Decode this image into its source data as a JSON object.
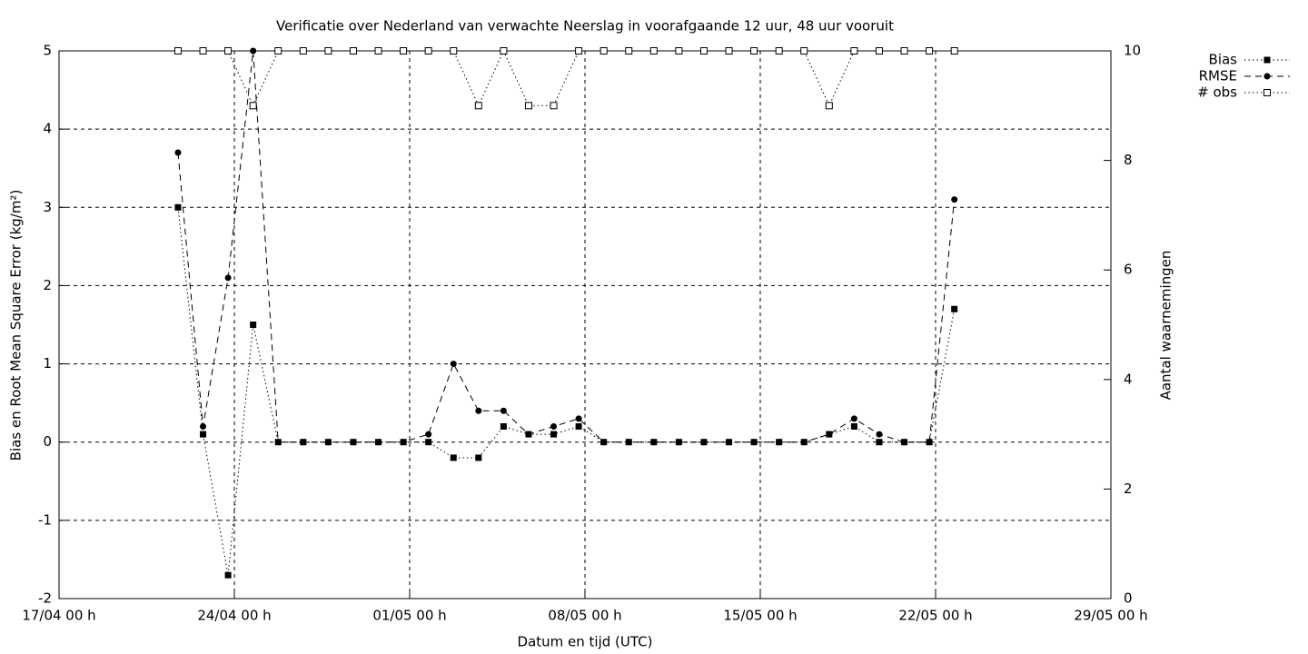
{
  "chart_data": {
    "type": "line",
    "title": "Verificatie over Nederland van verwachte Neerslag in voorafgaande 12 uur, 48 uur vooruit",
    "xlabel": "Datum en tijd (UTC)",
    "ylabel": "Bias en Root Mean Square Error (kg/m²)",
    "y2label": "Aantal waarnemingen",
    "x": [
      "21/04 18 h",
      "22/04 18 h",
      "23/04 18 h",
      "24/04 18 h",
      "25/04 18 h",
      "26/04 18 h",
      "27/04 18 h",
      "28/04 18 h",
      "29/04 18 h",
      "30/04 18 h",
      "01/05 18 h",
      "02/05 18 h",
      "03/05 18 h",
      "04/05 18 h",
      "05/05 18 h",
      "06/05 18 h",
      "07/05 18 h",
      "08/05 18 h",
      "09/05 18 h",
      "10/05 18 h",
      "11/05 18 h",
      "12/05 18 h",
      "13/05 18 h",
      "14/05 18 h",
      "15/05 18 h",
      "16/05 18 h",
      "17/05 18 h",
      "18/05 18 h",
      "19/05 18 h",
      "20/05 18 h",
      "21/05 18 h",
      "22/05 18 h"
    ],
    "series": [
      {
        "name": "Bias",
        "color": "#000000",
        "line_style": "dotted",
        "marker": "filled-square",
        "values": [
          3.0,
          0.1,
          -1.7,
          1.5,
          0,
          0,
          0,
          0,
          0,
          0,
          0,
          -0.2,
          -0.2,
          0.2,
          0.1,
          0.1,
          0.2,
          0,
          0,
          0,
          0,
          0,
          0,
          0,
          0,
          0,
          0.1,
          0.2,
          0,
          0,
          0,
          1.7
        ]
      },
      {
        "name": "RMSE",
        "color": "#000000",
        "line_style": "dashed",
        "marker": "filled-circle",
        "values": [
          3.7,
          0.2,
          2.1,
          5.0,
          0,
          0,
          0,
          0,
          0,
          0,
          0.1,
          1.0,
          0.4,
          0.4,
          0.1,
          0.2,
          0.3,
          0,
          0,
          0,
          0,
          0,
          0,
          0,
          0,
          0,
          0.1,
          0.3,
          0.1,
          0,
          0,
          3.1
        ]
      },
      {
        "name": "# obs",
        "color": "#000000",
        "line_style": "dotted",
        "marker": "open-square",
        "axis": "y2",
        "values": [
          10,
          10,
          10,
          9,
          10,
          10,
          10,
          10,
          10,
          10,
          10,
          10,
          9,
          10,
          9,
          9,
          10,
          10,
          10,
          10,
          10,
          10,
          10,
          10,
          10,
          10,
          9,
          10,
          10,
          10,
          10,
          10
        ]
      }
    ],
    "xlim": [
      "17/04 00 h",
      "29/05 00 h"
    ],
    "xticks": [
      "17/04 00 h",
      "24/04 00 h",
      "01/05 00 h",
      "08/05 00 h",
      "15/05 00 h",
      "22/05 00 h",
      "29/05 00 h"
    ],
    "ylim": [
      -2,
      5
    ],
    "yticks": [
      -2,
      -1,
      0,
      1,
      2,
      3,
      4,
      5
    ],
    "y2lim": [
      0,
      10
    ],
    "y2ticks": [
      0,
      2,
      4,
      6,
      8,
      10
    ],
    "grid": true,
    "legend": "outside-top-right"
  }
}
